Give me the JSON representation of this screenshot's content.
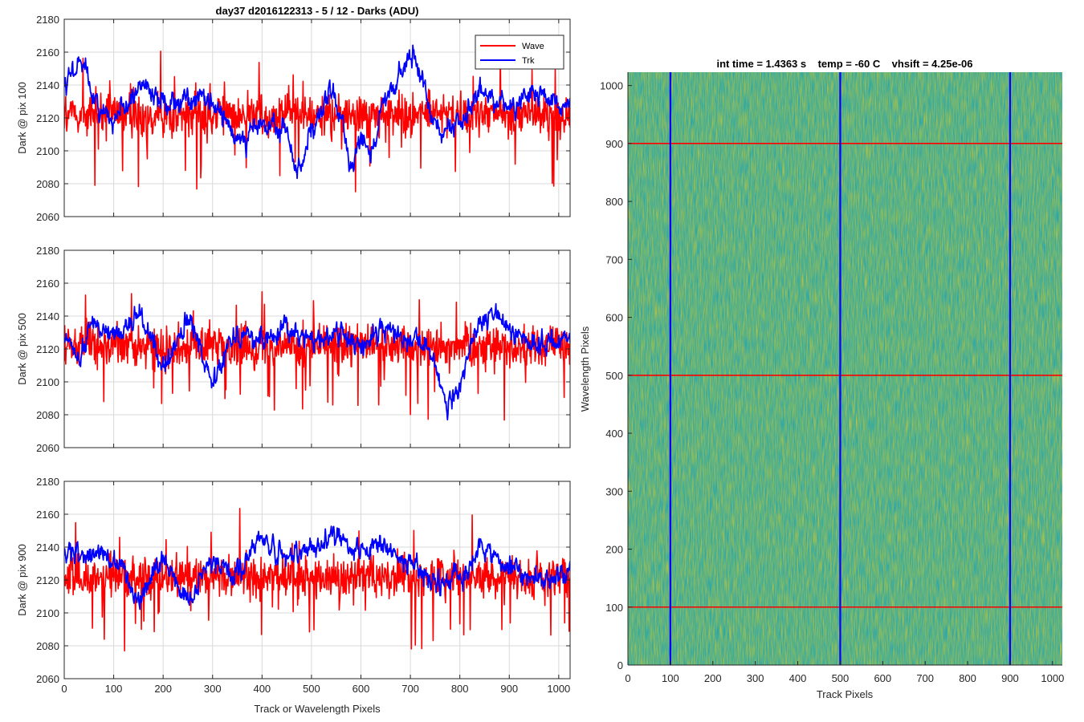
{
  "figure": {
    "left_title": "day37 d2016122313 - 5 / 12 - Darks (ADU)",
    "right_title": "int time = 1.4363 s    temp = -60 C    vhsift = 4.25e-06",
    "left_xlabel": "Track or Wavelength Pixels",
    "right_xlabel": "Track Pixels",
    "right_ylabel": "Wavelength Pixels"
  },
  "legend": {
    "items": [
      "Wave",
      "Trk"
    ],
    "placement": "top-right of first plot"
  },
  "colors": {
    "wave": "#ff0000",
    "trk": "#0000ff",
    "grid": "#d9d9d9",
    "axes": "#262626",
    "map_low": "#1aa3b8",
    "map_mid": "#5fb87a",
    "map_high": "#c9c33a"
  },
  "chart_data": [
    {
      "type": "line",
      "ylabel": "Dark @ pix 100",
      "xlim": [
        0,
        1023
      ],
      "ylim": [
        2060,
        2180
      ],
      "xticks": [
        0,
        100,
        200,
        300,
        400,
        500,
        600,
        700,
        800,
        900,
        1000
      ],
      "yticks": [
        2060,
        2080,
        2100,
        2120,
        2140,
        2160,
        2180
      ],
      "grid": true,
      "series": [
        {
          "name": "Wave",
          "mean": 2122,
          "noise": 12
        },
        {
          "name": "Trk",
          "anchors": [
            [
              0,
              2135
            ],
            [
              20,
              2150
            ],
            [
              40,
              2155
            ],
            [
              60,
              2130
            ],
            [
              90,
              2120
            ],
            [
              120,
              2128
            ],
            [
              160,
              2140
            ],
            [
              200,
              2130
            ],
            [
              250,
              2132
            ],
            [
              300,
              2128
            ],
            [
              350,
              2108
            ],
            [
              400,
              2115
            ],
            [
              450,
              2112
            ],
            [
              470,
              2088
            ],
            [
              500,
              2110
            ],
            [
              540,
              2135
            ],
            [
              560,
              2118
            ],
            [
              580,
              2092
            ],
            [
              600,
              2110
            ],
            [
              620,
              2100
            ],
            [
              650,
              2130
            ],
            [
              680,
              2145
            ],
            [
              700,
              2157
            ],
            [
              720,
              2148
            ],
            [
              740,
              2125
            ],
            [
              770,
              2112
            ],
            [
              800,
              2118
            ],
            [
              850,
              2135
            ],
            [
              900,
              2128
            ],
            [
              950,
              2135
            ],
            [
              1000,
              2125
            ],
            [
              1023,
              2130
            ]
          ],
          "jitter": 6
        }
      ]
    },
    {
      "type": "line",
      "ylabel": "Dark @ pix 500",
      "xlim": [
        0,
        1023
      ],
      "ylim": [
        2060,
        2180
      ],
      "xticks": [
        0,
        100,
        200,
        300,
        400,
        500,
        600,
        700,
        800,
        900,
        1000
      ],
      "yticks": [
        2060,
        2080,
        2100,
        2120,
        2140,
        2160,
        2180
      ],
      "grid": true,
      "series": [
        {
          "name": "Wave",
          "mean": 2122,
          "noise": 12
        },
        {
          "name": "Trk",
          "anchors": [
            [
              0,
              2125
            ],
            [
              30,
              2115
            ],
            [
              60,
              2135
            ],
            [
              100,
              2130
            ],
            [
              150,
              2140
            ],
            [
              200,
              2110
            ],
            [
              250,
              2135
            ],
            [
              300,
              2105
            ],
            [
              350,
              2130
            ],
            [
              400,
              2125
            ],
            [
              450,
              2132
            ],
            [
              500,
              2125
            ],
            [
              550,
              2130
            ],
            [
              600,
              2122
            ],
            [
              650,
              2132
            ],
            [
              700,
              2128
            ],
            [
              740,
              2118
            ],
            [
              780,
              2085
            ],
            [
              800,
              2095
            ],
            [
              830,
              2130
            ],
            [
              870,
              2140
            ],
            [
              920,
              2128
            ],
            [
              960,
              2122
            ],
            [
              1000,
              2125
            ],
            [
              1023,
              2130
            ]
          ],
          "jitter": 6
        }
      ]
    },
    {
      "type": "line",
      "ylabel": "Dark @ pix 900",
      "xlim": [
        0,
        1023
      ],
      "ylim": [
        2060,
        2180
      ],
      "xticks": [
        0,
        100,
        200,
        300,
        400,
        500,
        600,
        700,
        800,
        900,
        1000
      ],
      "yticks": [
        2060,
        2080,
        2100,
        2120,
        2140,
        2160,
        2180
      ],
      "grid": true,
      "series": [
        {
          "name": "Wave",
          "mean": 2122,
          "noise": 12
        },
        {
          "name": "Trk",
          "anchors": [
            [
              0,
              2135
            ],
            [
              50,
              2138
            ],
            [
              100,
              2132
            ],
            [
              150,
              2110
            ],
            [
              200,
              2132
            ],
            [
              250,
              2108
            ],
            [
              300,
              2132
            ],
            [
              350,
              2125
            ],
            [
              400,
              2145
            ],
            [
              450,
              2132
            ],
            [
              500,
              2140
            ],
            [
              550,
              2148
            ],
            [
              600,
              2138
            ],
            [
              650,
              2138
            ],
            [
              700,
              2130
            ],
            [
              750,
              2118
            ],
            [
              800,
              2122
            ],
            [
              850,
              2138
            ],
            [
              900,
              2128
            ],
            [
              950,
              2120
            ],
            [
              1000,
              2122
            ],
            [
              1023,
              2125
            ]
          ],
          "jitter": 6
        }
      ]
    },
    {
      "type": "heatmap",
      "xlim": [
        0,
        1023
      ],
      "ylim": [
        0,
        1023
      ],
      "xticks": [
        0,
        100,
        200,
        300,
        400,
        500,
        600,
        700,
        800,
        900,
        1000
      ],
      "yticks": [
        0,
        100,
        200,
        300,
        400,
        500,
        600,
        700,
        800,
        900,
        1000
      ],
      "vertical_lines": [
        100,
        500,
        900
      ],
      "horizontal_lines": [
        100,
        500,
        900
      ]
    }
  ]
}
